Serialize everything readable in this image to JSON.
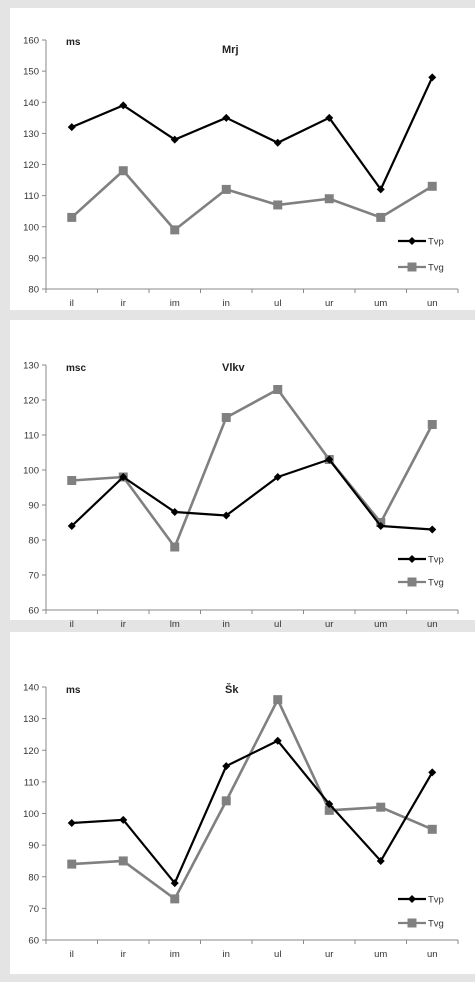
{
  "chart_data": [
    {
      "type": "line",
      "title": "Mrj",
      "ylabel": "ms",
      "categories": [
        "il",
        "ir",
        "im",
        "in",
        "ul",
        "ur",
        "um",
        "un"
      ],
      "ylim": [
        80,
        160
      ],
      "yticks": [
        80,
        90,
        100,
        110,
        120,
        130,
        140,
        150,
        160
      ],
      "grid": false,
      "legend_position": "bottom-right",
      "series": [
        {
          "name": "Tvp",
          "values": [
            132,
            139,
            128,
            135,
            127,
            135,
            112,
            148
          ],
          "color": "#000000",
          "marker": "diamond"
        },
        {
          "name": "Tvg",
          "values": [
            103,
            118,
            99,
            112,
            107,
            109,
            103,
            113
          ],
          "color": "#808080",
          "marker": "square"
        }
      ]
    },
    {
      "type": "line",
      "title": "Vlkv",
      "ylabel": "msc",
      "categories": [
        "il",
        "ir",
        "lm",
        "in",
        "ul",
        "ur",
        "um",
        "un"
      ],
      "ylim": [
        60,
        130
      ],
      "yticks": [
        60,
        70,
        80,
        90,
        100,
        110,
        120,
        130
      ],
      "grid": false,
      "legend_position": "bottom-right",
      "series": [
        {
          "name": "Tvp",
          "values": [
            84,
            98,
            88,
            87,
            98,
            103,
            84,
            83
          ],
          "color": "#000000",
          "marker": "diamond"
        },
        {
          "name": "Tvg",
          "values": [
            97,
            98,
            78,
            115,
            123,
            103,
            85,
            113
          ],
          "color": "#808080",
          "marker": "square"
        }
      ]
    },
    {
      "type": "line",
      "title": "Šk",
      "ylabel": "ms",
      "categories": [
        "il",
        "ir",
        "im",
        "in",
        "ul",
        "ur",
        "um",
        "un"
      ],
      "ylim": [
        60,
        140
      ],
      "yticks": [
        60,
        70,
        80,
        90,
        100,
        110,
        120,
        130,
        140
      ],
      "grid": false,
      "legend_position": "bottom-right",
      "series": [
        {
          "name": "Tvp",
          "values": [
            97,
            98,
            78,
            115,
            123,
            103,
            85,
            113
          ],
          "color": "#000000",
          "marker": "diamond"
        },
        {
          "name": "Tvg",
          "values": [
            84,
            85,
            73,
            104,
            136,
            101,
            102,
            95
          ],
          "color": "#808080",
          "marker": "square"
        }
      ]
    }
  ]
}
